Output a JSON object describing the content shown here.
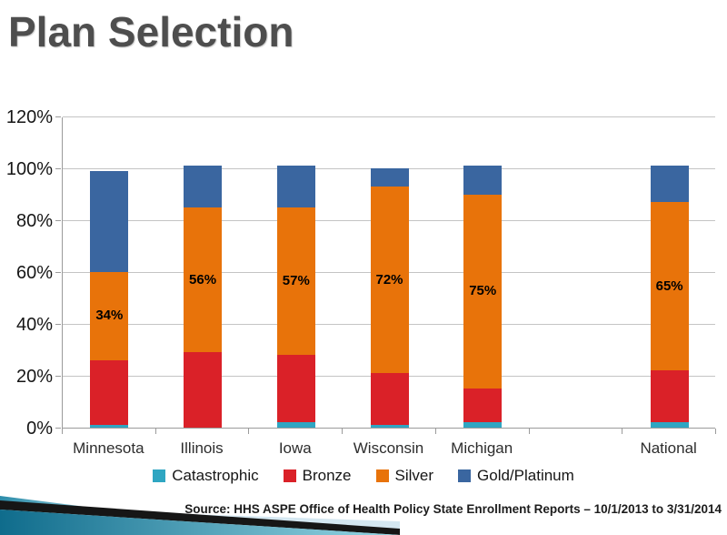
{
  "slide": {
    "title": "Plan Selection",
    "source": "Source: HHS ASPE Office of Health Policy  State Enrollment Reports – 10/1/2013 to  3/31/2014"
  },
  "chart_data": {
    "type": "bar",
    "stacked": true,
    "title": "Plan Selection",
    "categories": [
      "Minnesota",
      "Illinois",
      "Iowa",
      "Wisconsin",
      "Michigan",
      "National"
    ],
    "category_slots": [
      0,
      1,
      2,
      3,
      4,
      6
    ],
    "total_slots": 7,
    "series": [
      {
        "name": "Catastrophic",
        "color": "#2fa6c2",
        "values": [
          1,
          0,
          2,
          1,
          2,
          2
        ]
      },
      {
        "name": "Bronze",
        "color": "#da2128",
        "values": [
          25,
          29,
          26,
          20,
          13,
          20
        ]
      },
      {
        "name": "Silver",
        "color": "#e8730a",
        "values": [
          34,
          56,
          57,
          72,
          75,
          65
        ],
        "data_labels": [
          "34%",
          "56%",
          "57%",
          "72%",
          "75%",
          "65%"
        ]
      },
      {
        "name": "Gold/Platinum",
        "color": "#3a66a0",
        "values": [
          39,
          16,
          16,
          7,
          11,
          14
        ]
      }
    ],
    "stack_totals": [
      99,
      101,
      101,
      100,
      101,
      101
    ],
    "ylim": [
      0,
      120
    ],
    "ytick_step": 20,
    "ytick_labels": [
      "0%",
      "20%",
      "40%",
      "60%",
      "80%",
      "100%",
      "120%"
    ],
    "grid": true,
    "legend_position": "bottom",
    "colors": {
      "gridline": "#c4c4c4",
      "axis": "#9b9b9b",
      "title_text": "#4e4e4e",
      "decoration_teal_dark": "#136f8e",
      "decoration_teal_light": "#96d6e4",
      "decoration_pale_blue": "#d4e7f1",
      "decoration_black": "#161616"
    }
  }
}
